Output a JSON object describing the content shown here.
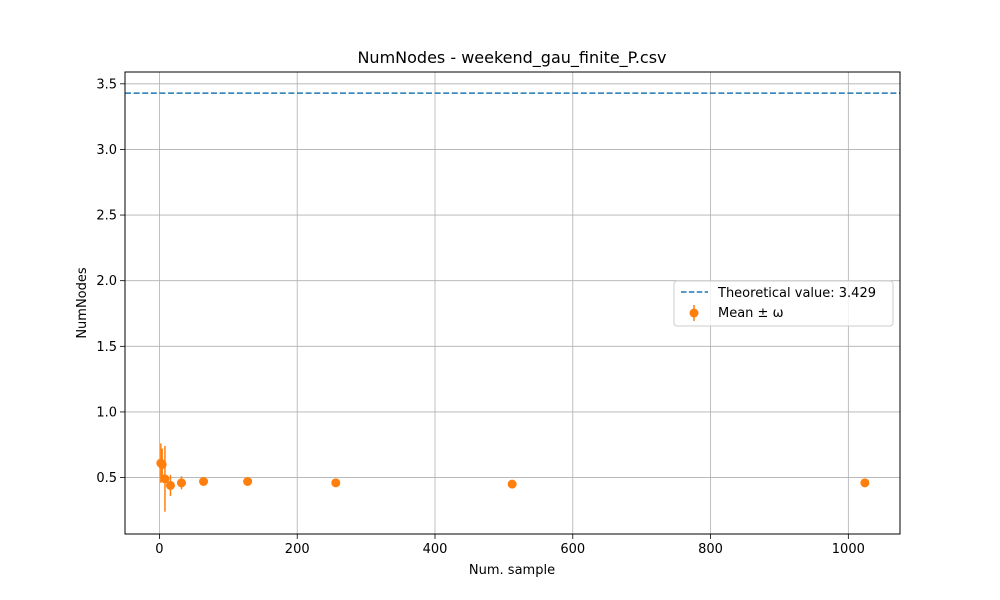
{
  "chart_data": {
    "type": "scatter",
    "title": "NumNodes - weekend_gau_finite_P.csv",
    "xlabel": "Num. sample",
    "ylabel": "NumNodes",
    "xlim": [
      -50,
      1075
    ],
    "ylim": [
      0.07,
      3.59
    ],
    "x_ticks": [
      0,
      200,
      400,
      600,
      800,
      1000
    ],
    "x_tick_labels": [
      "0",
      "200",
      "400",
      "600",
      "800",
      "1000"
    ],
    "y_ticks": [
      0.5,
      1.0,
      1.5,
      2.0,
      2.5,
      3.0,
      3.5
    ],
    "y_tick_labels": [
      "0.5",
      "1.0",
      "1.5",
      "2.0",
      "2.5",
      "3.0",
      "3.5"
    ],
    "grid": true,
    "legend_position": "center-right",
    "reference_line": {
      "name": "Theoretical value: 3.429",
      "value": 3.429,
      "style": "dashed",
      "color": "#1f77b4"
    },
    "series": [
      {
        "name": "Mean ± ω",
        "color": "#ff7f0e",
        "marker": "circle",
        "points": [
          {
            "x": 2,
            "y": 0.61,
            "err": 0.15
          },
          {
            "x": 4,
            "y": 0.6,
            "err": 0.12
          },
          {
            "x": 8,
            "y": 0.49,
            "err": 0.25
          },
          {
            "x": 16,
            "y": 0.44,
            "err": 0.08
          },
          {
            "x": 32,
            "y": 0.46,
            "err": 0.05
          },
          {
            "x": 64,
            "y": 0.47,
            "err": 0.03
          },
          {
            "x": 128,
            "y": 0.47,
            "err": 0.02
          },
          {
            "x": 256,
            "y": 0.46,
            "err": 0.015
          },
          {
            "x": 512,
            "y": 0.45,
            "err": 0.01
          },
          {
            "x": 1024,
            "y": 0.46,
            "err": 0.008
          }
        ]
      }
    ]
  }
}
